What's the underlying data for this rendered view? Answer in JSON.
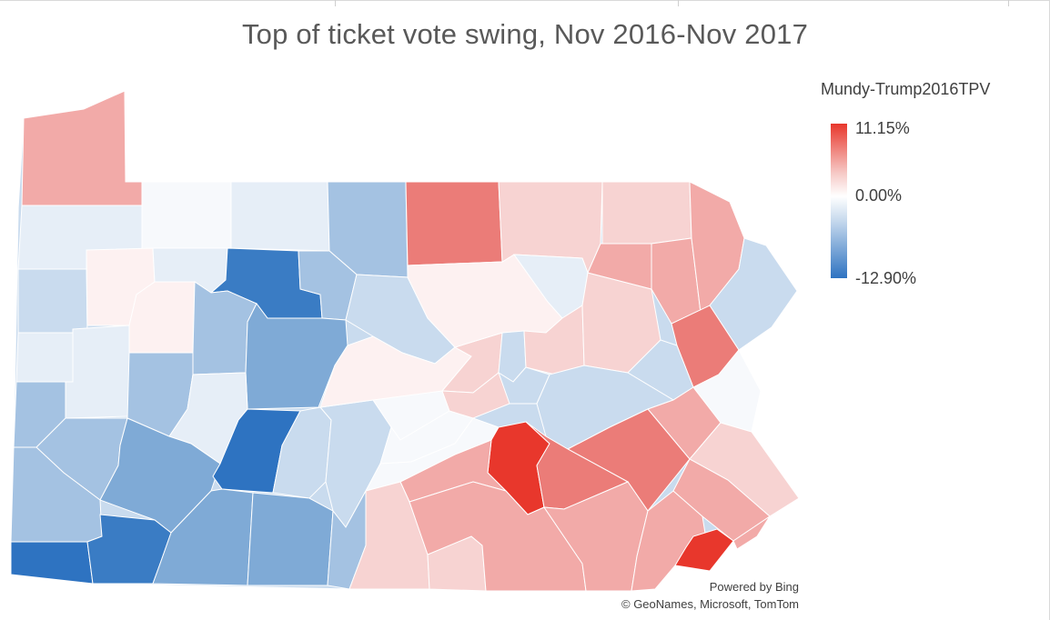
{
  "title": "Top of ticket vote swing, Nov 2016-Nov 2017",
  "legend": {
    "title": "Mundy-Trump2016TPV",
    "max_label": "11.15%",
    "mid_label": "0.00%",
    "min_label": "-12.90%",
    "colors": {
      "max": "#e8372c",
      "mid": "#ffffff",
      "min": "#2e73c1"
    }
  },
  "attribution": {
    "line1": "Powered by Bing",
    "line2": "© GeoNames, Microsoft, TomTom"
  },
  "palette": {
    "strong_red": "#e8372c",
    "red": "#eb7c78",
    "light_red": "#f2aaa8",
    "pink": "#f7d3d2",
    "pale": "#fdf1f1",
    "near_white": "#f7f9fc",
    "pale_blue": "#e6eef7",
    "light_blue": "#c9dbee",
    "blue": "#a4c2e2",
    "mid_blue": "#7faad6",
    "dark_blue": "#3a7cc4",
    "strong_blue": "#2e73c1"
  }
}
